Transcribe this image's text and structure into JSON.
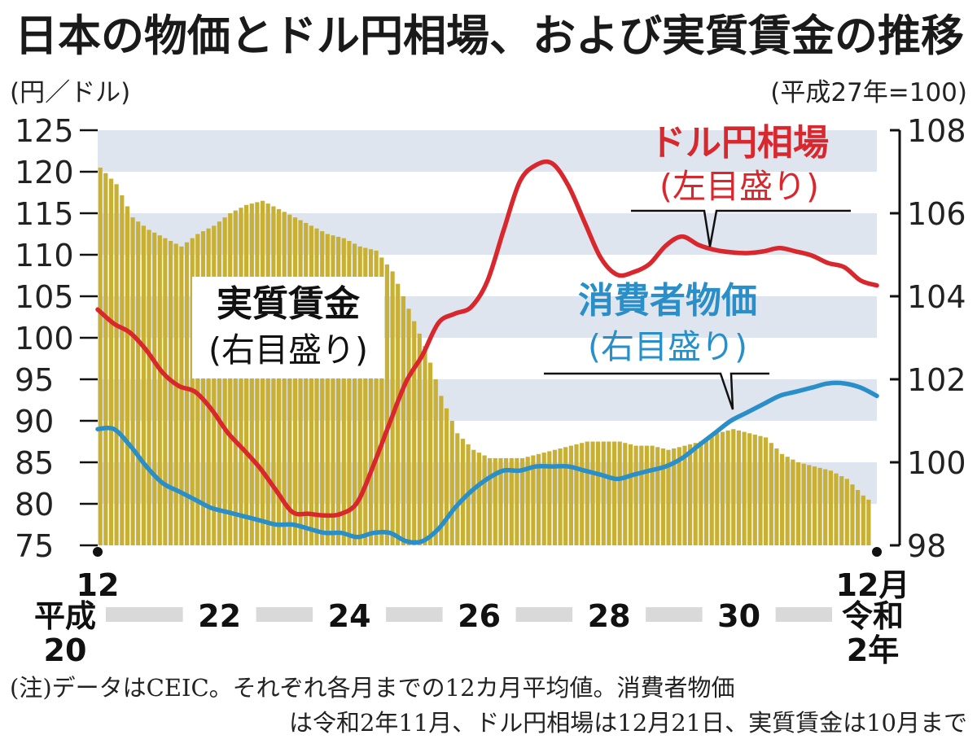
{
  "title": "日本の物価とドル円相場、および実質賃金の推移",
  "colors": {
    "usd_jpy": "#d9272e",
    "cpi": "#2a8fc8",
    "wage_bars": "#c8b034",
    "band": "#dfe5ef",
    "text": "#1a1a1a"
  },
  "chart_data": {
    "type": "bar+line",
    "left_axis": {
      "unit": "(円／ドル)",
      "ylim": [
        75,
        125
      ],
      "ticks": [
        "125",
        "120",
        "115",
        "110",
        "105",
        "100",
        "95",
        "90",
        "85",
        "80",
        "75"
      ]
    },
    "right_axis": {
      "unit": "(平成27年=100)",
      "ylim": [
        98,
        108
      ],
      "ticks": [
        "108",
        "106",
        "104",
        "102",
        "100",
        "98"
      ]
    },
    "x_axis": {
      "start": "2008-12",
      "end": "2020-12",
      "start_label": "12",
      "end_label": "12月",
      "era_labels": [
        {
          "year": 2008,
          "label": "平成\n20"
        },
        {
          "year": 2010,
          "label": "22"
        },
        {
          "year": 2012,
          "label": "24"
        },
        {
          "year": 2014,
          "label": "26"
        },
        {
          "year": 2016,
          "label": "28"
        },
        {
          "year": 2018,
          "label": "30"
        },
        {
          "year": 2020,
          "label": "令和\n2年"
        }
      ]
    },
    "series": [
      {
        "name": "ドル円相場",
        "axis_note": "(左目盛り)",
        "type": "line",
        "x": [
          "2008-12",
          "2009-03",
          "2009-06",
          "2009-09",
          "2009-12",
          "2010-03",
          "2010-06",
          "2010-09",
          "2010-12",
          "2011-03",
          "2011-06",
          "2011-09",
          "2011-12",
          "2012-03",
          "2012-06",
          "2012-09",
          "2012-12",
          "2013-03",
          "2013-06",
          "2013-09",
          "2013-12",
          "2014-03",
          "2014-06",
          "2014-09",
          "2014-12",
          "2015-03",
          "2015-06",
          "2015-09",
          "2015-12",
          "2016-03",
          "2016-06",
          "2016-09",
          "2016-12",
          "2017-03",
          "2017-06",
          "2017-09",
          "2017-12",
          "2018-03",
          "2018-06",
          "2018-09",
          "2018-12",
          "2019-03",
          "2019-06",
          "2019-09",
          "2019-12",
          "2020-03",
          "2020-06",
          "2020-09",
          "2020-12"
        ],
        "y": [
          103.4,
          101.7,
          100.6,
          98.5,
          95.8,
          94.2,
          93.5,
          91.4,
          88.6,
          86.5,
          84.3,
          81.6,
          79.0,
          78.8,
          78.6,
          78.8,
          80.2,
          84.7,
          89.8,
          94.7,
          97.9,
          101.8,
          102.9,
          103.7,
          106.8,
          112.9,
          118.8,
          120.8,
          121.0,
          118.3,
          113.9,
          109.6,
          107.6,
          107.9,
          108.9,
          111.1,
          112.2,
          111.2,
          110.6,
          110.3,
          110.2,
          110.4,
          110.8,
          110.4,
          109.9,
          109.0,
          108.5,
          106.9,
          106.3
        ]
      },
      {
        "name": "消費者物価",
        "axis_note": "(右目盛り)",
        "type": "line",
        "x": [
          "2008-12",
          "2009-03",
          "2009-06",
          "2009-09",
          "2009-12",
          "2010-03",
          "2010-06",
          "2010-09",
          "2010-12",
          "2011-03",
          "2011-06",
          "2011-09",
          "2011-12",
          "2012-03",
          "2012-06",
          "2012-09",
          "2012-12",
          "2013-03",
          "2013-06",
          "2013-09",
          "2013-12",
          "2014-03",
          "2014-06",
          "2014-09",
          "2014-12",
          "2015-03",
          "2015-06",
          "2015-09",
          "2015-12",
          "2016-03",
          "2016-06",
          "2016-09",
          "2016-12",
          "2017-03",
          "2017-06",
          "2017-09",
          "2017-12",
          "2018-03",
          "2018-06",
          "2018-09",
          "2018-12",
          "2019-03",
          "2019-06",
          "2019-09",
          "2019-12",
          "2020-03",
          "2020-06",
          "2020-09",
          "2020-12"
        ],
        "y": [
          100.8,
          100.8,
          100.4,
          99.9,
          99.5,
          99.3,
          99.1,
          98.9,
          98.8,
          98.7,
          98.6,
          98.5,
          98.5,
          98.4,
          98.3,
          98.3,
          98.2,
          98.3,
          98.3,
          98.1,
          98.1,
          98.4,
          98.9,
          99.3,
          99.6,
          99.8,
          99.8,
          99.9,
          99.9,
          99.9,
          99.8,
          99.7,
          99.6,
          99.7,
          99.8,
          99.9,
          100.1,
          100.4,
          100.7,
          101.0,
          101.2,
          101.4,
          101.6,
          101.7,
          101.8,
          101.9,
          101.9,
          101.8,
          101.6
        ]
      },
      {
        "name": "実質賃金",
        "axis_note": "(右目盛り)",
        "type": "bar",
        "x": [
          "2008-12",
          "2009-03",
          "2009-06",
          "2009-09",
          "2009-12",
          "2010-03",
          "2010-06",
          "2010-09",
          "2010-12",
          "2011-03",
          "2011-06",
          "2011-09",
          "2011-12",
          "2012-03",
          "2012-06",
          "2012-09",
          "2012-12",
          "2013-03",
          "2013-06",
          "2013-09",
          "2013-12",
          "2014-03",
          "2014-06",
          "2014-09",
          "2014-12",
          "2015-03",
          "2015-06",
          "2015-09",
          "2015-12",
          "2016-03",
          "2016-06",
          "2016-09",
          "2016-12",
          "2017-03",
          "2017-06",
          "2017-09",
          "2017-12",
          "2018-03",
          "2018-06",
          "2018-09",
          "2018-12",
          "2019-03",
          "2019-06",
          "2019-09",
          "2019-12",
          "2020-03",
          "2020-06",
          "2020-09",
          "2020-12"
        ],
        "y": [
          107.1,
          106.7,
          105.9,
          105.6,
          105.4,
          105.2,
          105.5,
          105.7,
          106.0,
          106.2,
          106.3,
          106.1,
          105.9,
          105.7,
          105.5,
          105.4,
          105.2,
          105.1,
          104.6,
          103.7,
          102.8,
          101.6,
          100.7,
          100.3,
          100.1,
          100.1,
          100.1,
          100.2,
          100.3,
          100.4,
          100.5,
          100.5,
          100.5,
          100.4,
          100.4,
          100.3,
          100.4,
          100.5,
          100.7,
          100.8,
          100.7,
          100.6,
          100.2,
          100.0,
          99.9,
          99.8,
          99.6,
          99.2,
          98.9
        ]
      }
    ],
    "series_labels": {
      "usd_jpy": [
        "ドル円相場",
        "(左目盛り)"
      ],
      "cpi": [
        "消費者物価",
        "(右目盛り)"
      ],
      "wage": [
        "実質賃金",
        "(右目盛り)"
      ]
    }
  },
  "note": [
    "(注)データはCEIC。それぞれ各月までの12カ月平均値。消費者物価",
    "は令和2年11月、ドル円相場は12月21日、実質賃金は10月まで"
  ]
}
